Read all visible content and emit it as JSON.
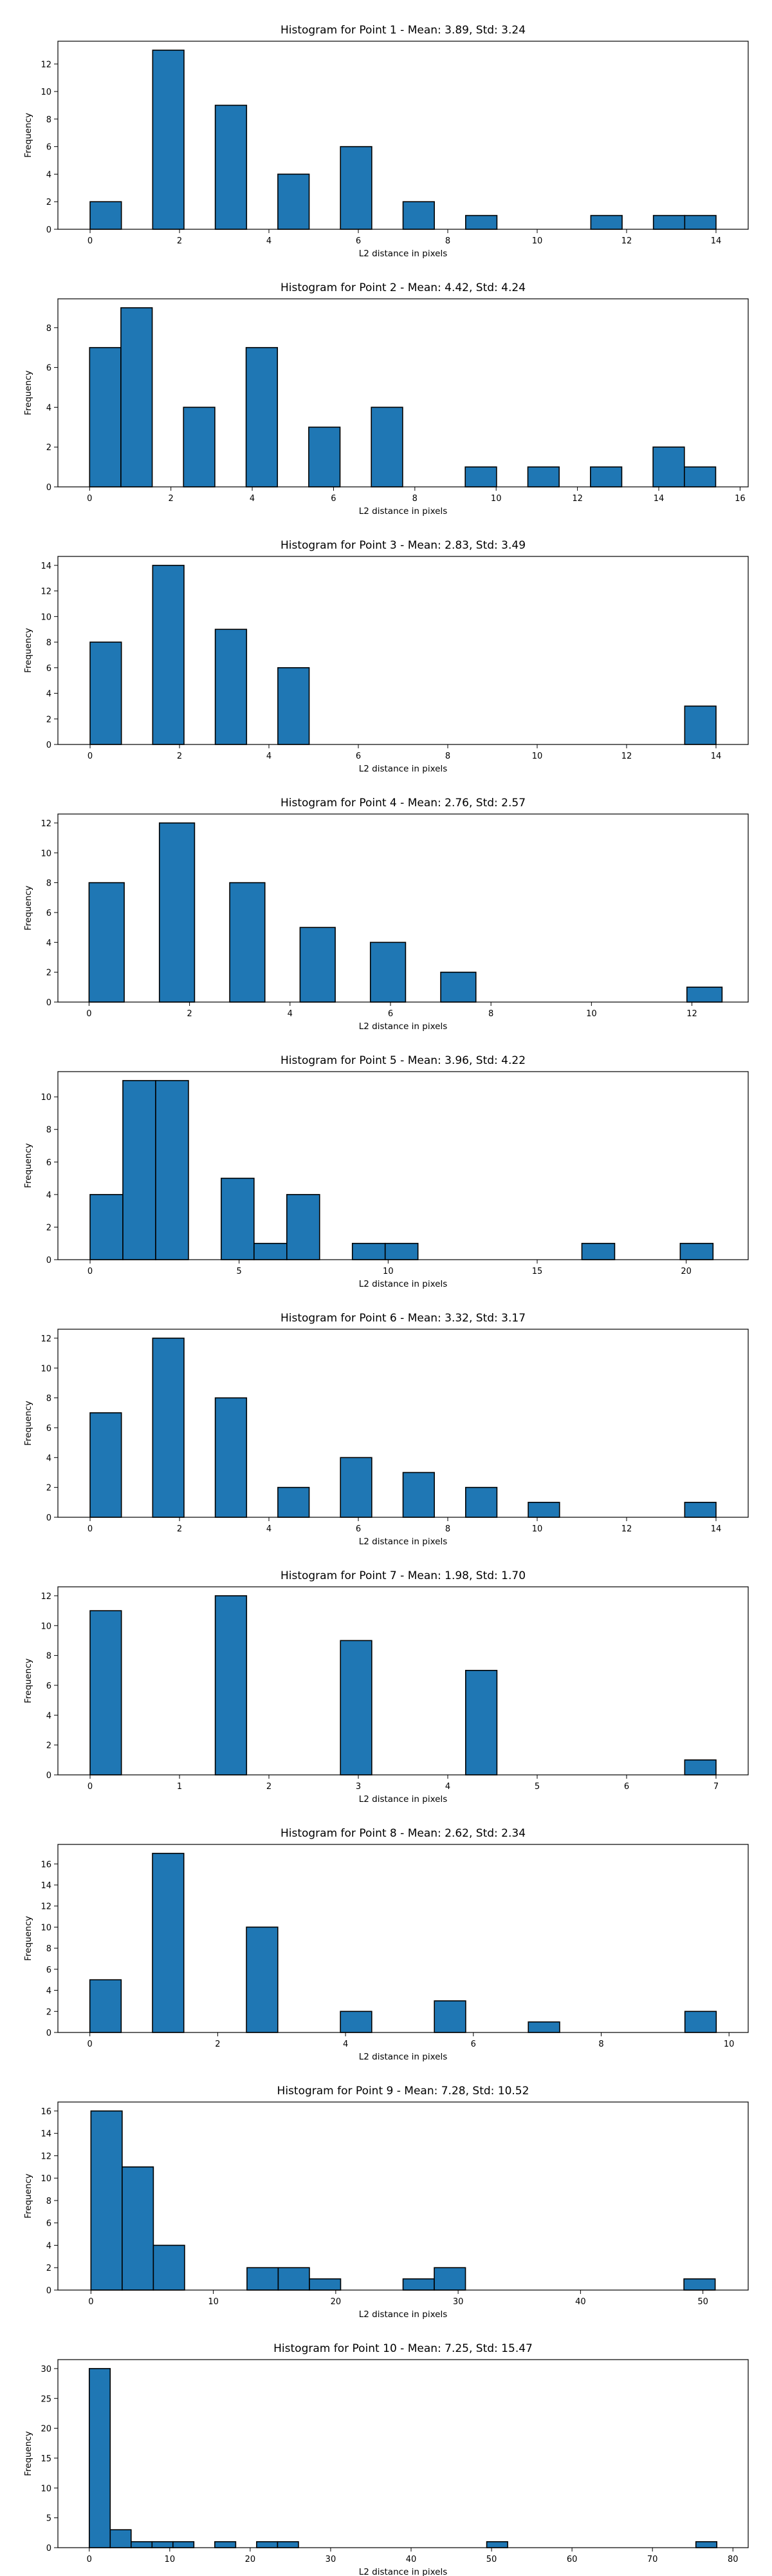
{
  "chart_data": [
    {
      "type": "bar",
      "title": "Histogram for Point 1 - Mean: 3.89, Std: 3.24",
      "xlabel": "L2 distance in pixels",
      "ylabel": "Frequency",
      "xlim": [
        -0.72,
        14.72
      ],
      "ylim": [
        0,
        13.65
      ],
      "xticks": [
        0,
        2,
        4,
        6,
        8,
        10,
        12,
        14
      ],
      "yticks": [
        0,
        2,
        4,
        6,
        8,
        10,
        12
      ],
      "bin_width": 0.7,
      "bins": [
        [
          0,
          2
        ],
        [
          1.4,
          13
        ],
        [
          2.8,
          9
        ],
        [
          4.2,
          4
        ],
        [
          5.6,
          6
        ],
        [
          7.0,
          2
        ],
        [
          8.4,
          1
        ],
        [
          11.2,
          1
        ],
        [
          12.6,
          1
        ],
        [
          13.3,
          1
        ]
      ],
      "color": "#1f77b4"
    },
    {
      "type": "bar",
      "title": "Histogram for Point 2 - Mean: 4.42, Std: 4.24",
      "xlabel": "L2 distance in pixels",
      "ylabel": "Frequency",
      "xlim": [
        -0.78,
        16.2
      ],
      "ylim": [
        0,
        9.45
      ],
      "xticks": [
        0,
        2,
        4,
        6,
        8,
        10,
        12,
        14,
        16
      ],
      "yticks": [
        0,
        2,
        4,
        6,
        8
      ],
      "bin_width": 0.77,
      "bins": [
        [
          0,
          7
        ],
        [
          0.77,
          9
        ],
        [
          2.31,
          4
        ],
        [
          3.85,
          7
        ],
        [
          5.39,
          3
        ],
        [
          6.93,
          4
        ],
        [
          9.24,
          1
        ],
        [
          10.78,
          1
        ],
        [
          12.32,
          1
        ],
        [
          13.86,
          2
        ],
        [
          14.63,
          1
        ]
      ],
      "color": "#1f77b4"
    },
    {
      "type": "bar",
      "title": "Histogram for Point 3 - Mean: 2.83, Std: 3.49",
      "xlabel": "L2 distance in pixels",
      "ylabel": "Frequency",
      "xlim": [
        -0.72,
        14.72
      ],
      "ylim": [
        0,
        14.7
      ],
      "xticks": [
        0,
        2,
        4,
        6,
        8,
        10,
        12,
        14
      ],
      "yticks": [
        0,
        2,
        4,
        6,
        8,
        10,
        12,
        14
      ],
      "bin_width": 0.7,
      "bins": [
        [
          0,
          8
        ],
        [
          1.4,
          14
        ],
        [
          2.8,
          9
        ],
        [
          4.2,
          6
        ],
        [
          13.3,
          3
        ]
      ],
      "color": "#1f77b4"
    },
    {
      "type": "bar",
      "title": "Histogram for Point 4 - Mean: 2.76, Std: 2.57",
      "xlabel": "L2 distance in pixels",
      "ylabel": "Frequency",
      "xlim": [
        -0.62,
        13.12
      ],
      "ylim": [
        0,
        12.6
      ],
      "xticks": [
        0,
        2,
        4,
        6,
        8,
        10,
        12
      ],
      "yticks": [
        0,
        2,
        4,
        6,
        8,
        10,
        12
      ],
      "bin_width": 0.7,
      "bins": [
        [
          0,
          8
        ],
        [
          1.4,
          12
        ],
        [
          2.8,
          8
        ],
        [
          4.2,
          5
        ],
        [
          5.6,
          4
        ],
        [
          7.0,
          2
        ],
        [
          11.9,
          1
        ]
      ],
      "color": "#1f77b4"
    },
    {
      "type": "bar",
      "title": "Histogram for Point 5 - Mean: 3.96, Std: 4.22",
      "xlabel": "L2 distance in pixels",
      "ylabel": "Frequency",
      "xlim": [
        -1.08,
        22.08
      ],
      "ylim": [
        0,
        11.55
      ],
      "xticks": [
        0,
        5,
        10,
        15,
        20
      ],
      "yticks": [
        0,
        2,
        4,
        6,
        8,
        10
      ],
      "bin_width": 1.1,
      "bins": [
        [
          0,
          4
        ],
        [
          1.1,
          11
        ],
        [
          2.2,
          11
        ],
        [
          4.4,
          5
        ],
        [
          5.5,
          1
        ],
        [
          6.6,
          4
        ],
        [
          8.8,
          1
        ],
        [
          9.9,
          1
        ],
        [
          16.5,
          1
        ],
        [
          19.8,
          1
        ]
      ],
      "color": "#1f77b4"
    },
    {
      "type": "bar",
      "title": "Histogram for Point 6 - Mean: 3.32, Std: 3.17",
      "xlabel": "L2 distance in pixels",
      "ylabel": "Frequency",
      "xlim": [
        -0.72,
        14.72
      ],
      "ylim": [
        0,
        12.6
      ],
      "xticks": [
        0,
        2,
        4,
        6,
        8,
        10,
        12,
        14
      ],
      "yticks": [
        0,
        2,
        4,
        6,
        8,
        10,
        12
      ],
      "bin_width": 0.7,
      "bins": [
        [
          0,
          7
        ],
        [
          1.4,
          12
        ],
        [
          2.8,
          8
        ],
        [
          4.2,
          2
        ],
        [
          5.6,
          4
        ],
        [
          7.0,
          3
        ],
        [
          8.4,
          2
        ],
        [
          9.8,
          1
        ],
        [
          13.3,
          1
        ]
      ],
      "color": "#1f77b4"
    },
    {
      "type": "bar",
      "title": "Histogram for Point 7 - Mean: 1.98, Std: 1.70",
      "xlabel": "L2 distance in pixels",
      "ylabel": "Frequency",
      "xlim": [
        -0.36,
        7.36
      ],
      "ylim": [
        0,
        12.6
      ],
      "xticks": [
        0,
        1,
        2,
        3,
        4,
        5,
        6,
        7
      ],
      "yticks": [
        0,
        2,
        4,
        6,
        8,
        10,
        12
      ],
      "bin_width": 0.35,
      "bins": [
        [
          0,
          11
        ],
        [
          1.4,
          12
        ],
        [
          2.8,
          9
        ],
        [
          4.2,
          7
        ],
        [
          6.65,
          1
        ]
      ],
      "color": "#1f77b4"
    },
    {
      "type": "bar",
      "title": "Histogram for Point 8 - Mean: 2.62, Std: 2.34",
      "xlabel": "L2 distance in pixels",
      "ylabel": "Frequency",
      "xlim": [
        -0.5,
        10.3
      ],
      "ylim": [
        0,
        17.85
      ],
      "xticks": [
        0,
        2,
        4,
        6,
        8,
        10
      ],
      "yticks": [
        0,
        2,
        4,
        6,
        8,
        10,
        12,
        14,
        16
      ],
      "bin_width": 0.49,
      "bins": [
        [
          0,
          5
        ],
        [
          0.98,
          17
        ],
        [
          2.45,
          10
        ],
        [
          3.92,
          2
        ],
        [
          5.39,
          3
        ],
        [
          6.86,
          1
        ],
        [
          9.31,
          2
        ]
      ],
      "color": "#1f77b4"
    },
    {
      "type": "bar",
      "title": "Histogram for Point 9 - Mean: 7.28, Std: 10.52",
      "xlabel": "L2 distance in pixels",
      "ylabel": "Frequency",
      "xlim": [
        -2.7,
        53.7
      ],
      "ylim": [
        0,
        16.8
      ],
      "xticks": [
        0,
        10,
        20,
        30,
        40,
        50
      ],
      "yticks": [
        0,
        2,
        4,
        6,
        8,
        10,
        12,
        14,
        16
      ],
      "bin_width": 2.55,
      "bins": [
        [
          0,
          16
        ],
        [
          2.55,
          11
        ],
        [
          5.1,
          4
        ],
        [
          12.75,
          2
        ],
        [
          15.3,
          2
        ],
        [
          17.85,
          1
        ],
        [
          25.5,
          1
        ],
        [
          28.05,
          2
        ],
        [
          48.45,
          1
        ]
      ],
      "color": "#1f77b4"
    },
    {
      "type": "bar",
      "title": "Histogram for Point 10 - Mean: 7.25, Std: 15.47",
      "xlabel": "L2 distance in pixels",
      "ylabel": "Frequency",
      "xlim": [
        -3.9,
        81.9
      ],
      "ylim": [
        0,
        31.5
      ],
      "xticks": [
        0,
        10,
        20,
        30,
        40,
        50,
        60,
        70,
        80
      ],
      "yticks": [
        0,
        5,
        10,
        15,
        20,
        25,
        30
      ],
      "bin_width": 2.6,
      "bins": [
        [
          0,
          30
        ],
        [
          2.6,
          3
        ],
        [
          5.2,
          1
        ],
        [
          7.8,
          1
        ],
        [
          10.4,
          1
        ],
        [
          15.6,
          1
        ],
        [
          20.8,
          1
        ],
        [
          23.4,
          1
        ],
        [
          49.4,
          1
        ],
        [
          75.4,
          1
        ]
      ],
      "color": "#1f77b4"
    }
  ]
}
